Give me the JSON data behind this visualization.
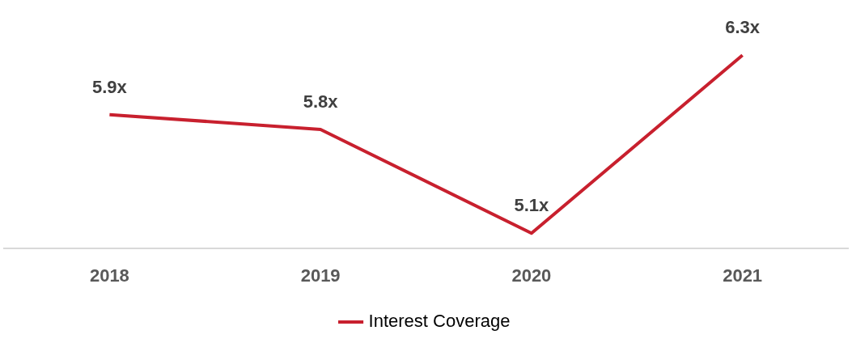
{
  "chart_data": {
    "type": "line",
    "categories": [
      "2018",
      "2019",
      "2020",
      "2021"
    ],
    "series": [
      {
        "name": "Interest Coverage",
        "color": "#c8202e",
        "values": [
          5.9,
          5.8,
          5.1,
          6.3
        ],
        "value_labels": [
          "5.9x",
          "5.8x",
          "5.1x",
          "6.3x"
        ]
      }
    ],
    "tick_labels": "x",
    "grid": false,
    "legend": "bottom",
    "marker": "none",
    "line_style": "solid"
  }
}
